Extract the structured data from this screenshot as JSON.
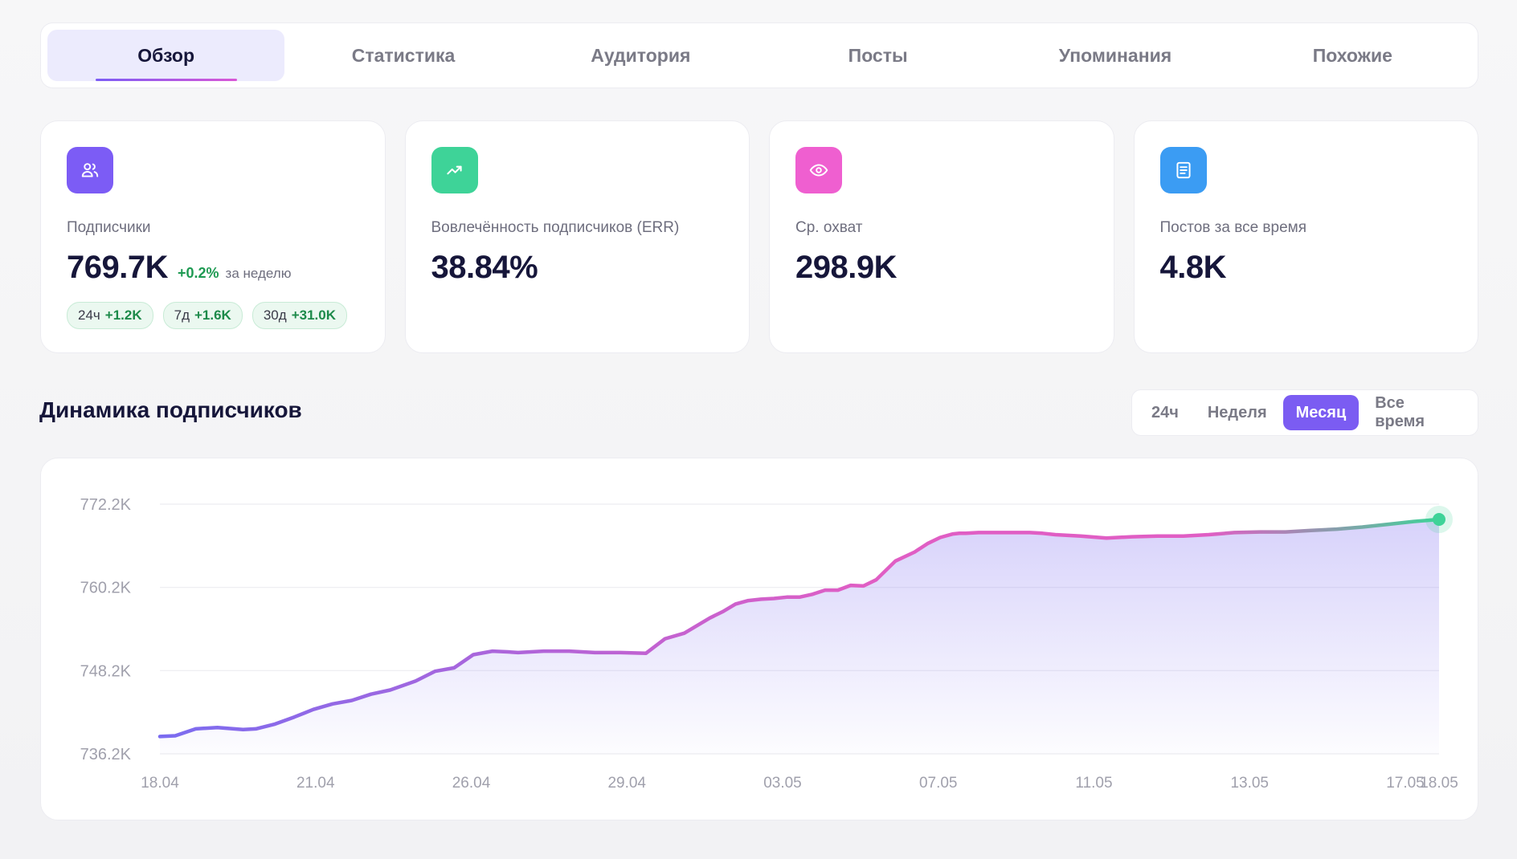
{
  "tabs": [
    {
      "label": "Обзор",
      "active": true
    },
    {
      "label": "Статистика",
      "active": false
    },
    {
      "label": "Аудитория",
      "active": false
    },
    {
      "label": "Посты",
      "active": false
    },
    {
      "label": "Упоминания",
      "active": false
    },
    {
      "label": "Похожие",
      "active": false
    }
  ],
  "cards": {
    "subscribers": {
      "icon": "users-icon",
      "color": "#7c5cf5",
      "label": "Подписчики",
      "value": "769.7K",
      "delta": "+0.2%",
      "delta_note": "за неделю",
      "chips": [
        {
          "period": "24ч",
          "value": "+1.2K"
        },
        {
          "period": "7д",
          "value": "+1.6K"
        },
        {
          "period": "30д",
          "value": "+31.0K"
        }
      ]
    },
    "err": {
      "icon": "trending-up-icon",
      "color": "#3ed398",
      "label": "Вовлечённость подписчиков (ERR)",
      "value": "38.84%"
    },
    "reach": {
      "icon": "eye-icon",
      "color": "#ef5fd0",
      "label": "Ср. охват",
      "value": "298.9K"
    },
    "posts": {
      "icon": "document-icon",
      "color": "#3b9cf3",
      "label": "Постов за все время",
      "value": "4.8K"
    }
  },
  "section": {
    "title": "Динамика подписчиков",
    "periods": [
      {
        "label": "24ч",
        "active": false
      },
      {
        "label": "Неделя",
        "active": false
      },
      {
        "label": "Месяц",
        "active": true
      },
      {
        "label": "Все время",
        "active": false
      }
    ]
  },
  "chart_data": {
    "type": "area",
    "title": "",
    "xlabel": "",
    "ylabel": "",
    "y_ticks": [
      736.2,
      748.2,
      760.2,
      772.2
    ],
    "y_tick_labels": [
      "736.2K",
      "748.2K",
      "760.2K",
      "772.2K"
    ],
    "ylim": [
      736.2,
      772.2
    ],
    "x_tick_labels": [
      "18.04",
      "21.04",
      "26.04",
      "29.04",
      "03.05",
      "07.05",
      "11.05",
      "13.05",
      "17.05",
      "18.05"
    ],
    "x_tick_positions": [
      0,
      0.1217,
      0.2434,
      0.3651,
      0.4868,
      0.6085,
      0.7302,
      0.8519,
      0.9736,
      1.0
    ],
    "grid": true,
    "gradient_colors": [
      "#7b6cf0",
      "#e05ec4",
      "#3ed398"
    ],
    "series": [
      {
        "x": [
          0,
          0.012,
          0.028,
          0.045,
          0.065,
          0.075,
          0.09,
          0.105,
          0.12,
          0.135,
          0.15,
          0.165,
          0.18,
          0.2,
          0.215,
          0.23,
          0.245,
          0.26,
          0.272,
          0.28,
          0.3,
          0.32,
          0.34,
          0.36,
          0.38,
          0.395,
          0.41,
          0.43,
          0.44,
          0.45,
          0.46,
          0.47,
          0.48,
          0.49,
          0.5,
          0.51,
          0.52,
          0.53,
          0.54,
          0.55,
          0.56,
          0.575,
          0.59,
          0.6,
          0.61,
          0.62,
          0.625,
          0.63,
          0.64,
          0.65,
          0.66,
          0.67,
          0.68,
          0.69,
          0.7,
          0.72,
          0.74,
          0.76,
          0.78,
          0.8,
          0.82,
          0.84,
          0.86,
          0.88,
          0.9,
          0.92,
          0.94,
          0.96,
          0.98,
          1.0
        ],
        "y": [
          738.7,
          738.8,
          739.8,
          740.0,
          739.7,
          739.8,
          740.5,
          741.5,
          742.6,
          743.4,
          743.9,
          744.8,
          745.4,
          746.7,
          748.1,
          748.6,
          750.5,
          751.0,
          750.9,
          750.8,
          751.0,
          751.0,
          750.8,
          750.8,
          750.7,
          752.8,
          753.6,
          755.8,
          756.7,
          757.8,
          758.3,
          758.5,
          758.6,
          758.8,
          758.8,
          759.2,
          759.8,
          759.8,
          760.5,
          760.4,
          761.3,
          764.0,
          765.3,
          766.5,
          767.4,
          767.9,
          768.0,
          768.0,
          768.1,
          768.1,
          768.1,
          768.1,
          768.1,
          768.0,
          767.8,
          767.6,
          767.3,
          767.5,
          767.6,
          767.6,
          767.8,
          768.1,
          768.2,
          768.2,
          768.4,
          768.6,
          768.9,
          769.3,
          769.7,
          770.0
        ]
      }
    ]
  }
}
